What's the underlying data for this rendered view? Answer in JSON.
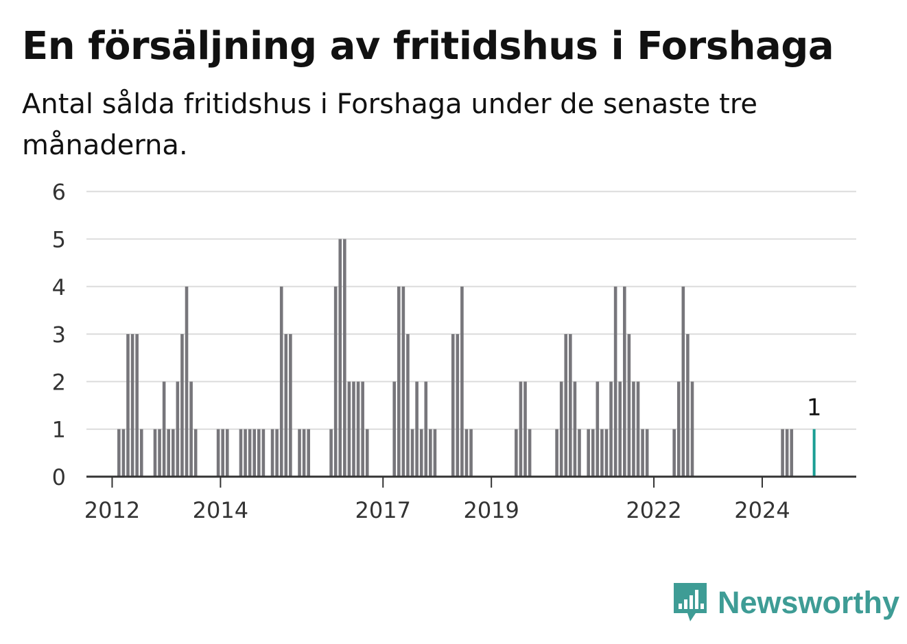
{
  "title": "En försäljning av fritidshus i Forshaga",
  "subtitle": "Antal sålda fritidshus i Forshaga under de senaste tre månaderna.",
  "brand": {
    "name": "Newsworthy",
    "color": "#3e9c95"
  },
  "chart_data": {
    "type": "bar",
    "title": "En försäljning av fritidshus i Forshaga",
    "subtitle": "Antal sålda fritidshus i Forshaga under de senaste tre månaderna.",
    "xlabel": "",
    "ylabel": "",
    "ylim": [
      0,
      6
    ],
    "yticks": [
      0,
      1,
      2,
      3,
      4,
      5,
      6
    ],
    "x_start": "2011-01",
    "x_ticks": [
      {
        "label": "2012",
        "index": 12
      },
      {
        "label": "2014",
        "index": 36
      },
      {
        "label": "2017",
        "index": 72
      },
      {
        "label": "2019",
        "index": 96
      },
      {
        "label": "2022",
        "index": 132
      },
      {
        "label": "2024",
        "index": 156
      }
    ],
    "values": [
      0,
      0,
      0,
      0,
      0,
      0,
      0,
      0,
      0,
      0,
      0,
      0,
      0,
      1,
      1,
      3,
      3,
      3,
      1,
      0,
      0,
      1,
      1,
      2,
      1,
      1,
      2,
      3,
      4,
      2,
      1,
      0,
      0,
      0,
      0,
      1,
      1,
      1,
      0,
      0,
      1,
      1,
      1,
      1,
      1,
      1,
      0,
      1,
      1,
      4,
      3,
      3,
      0,
      1,
      1,
      1,
      0,
      0,
      0,
      0,
      1,
      4,
      5,
      5,
      2,
      2,
      2,
      2,
      1,
      0,
      0,
      0,
      0,
      0,
      2,
      4,
      4,
      3,
      1,
      2,
      1,
      2,
      1,
      1,
      0,
      0,
      0,
      3,
      3,
      4,
      1,
      1,
      0,
      0,
      0,
      0,
      0,
      0,
      0,
      0,
      0,
      1,
      2,
      2,
      1,
      0,
      0,
      0,
      0,
      0,
      1,
      2,
      3,
      3,
      2,
      1,
      0,
      1,
      1,
      2,
      1,
      1,
      2,
      4,
      2,
      4,
      3,
      2,
      2,
      1,
      1,
      0,
      0,
      0,
      0,
      0,
      1,
      2,
      4,
      3,
      2,
      0,
      0,
      0,
      0,
      0,
      0,
      0,
      0,
      0,
      0,
      0,
      0,
      0,
      0,
      0,
      0,
      0,
      0,
      0,
      1,
      1,
      1,
      0,
      0,
      0,
      0,
      1
    ],
    "highlight": {
      "index": 167,
      "value": 1,
      "label": "1",
      "color": "#1a9e94"
    },
    "bar_color": "#77767b",
    "grid": true
  }
}
